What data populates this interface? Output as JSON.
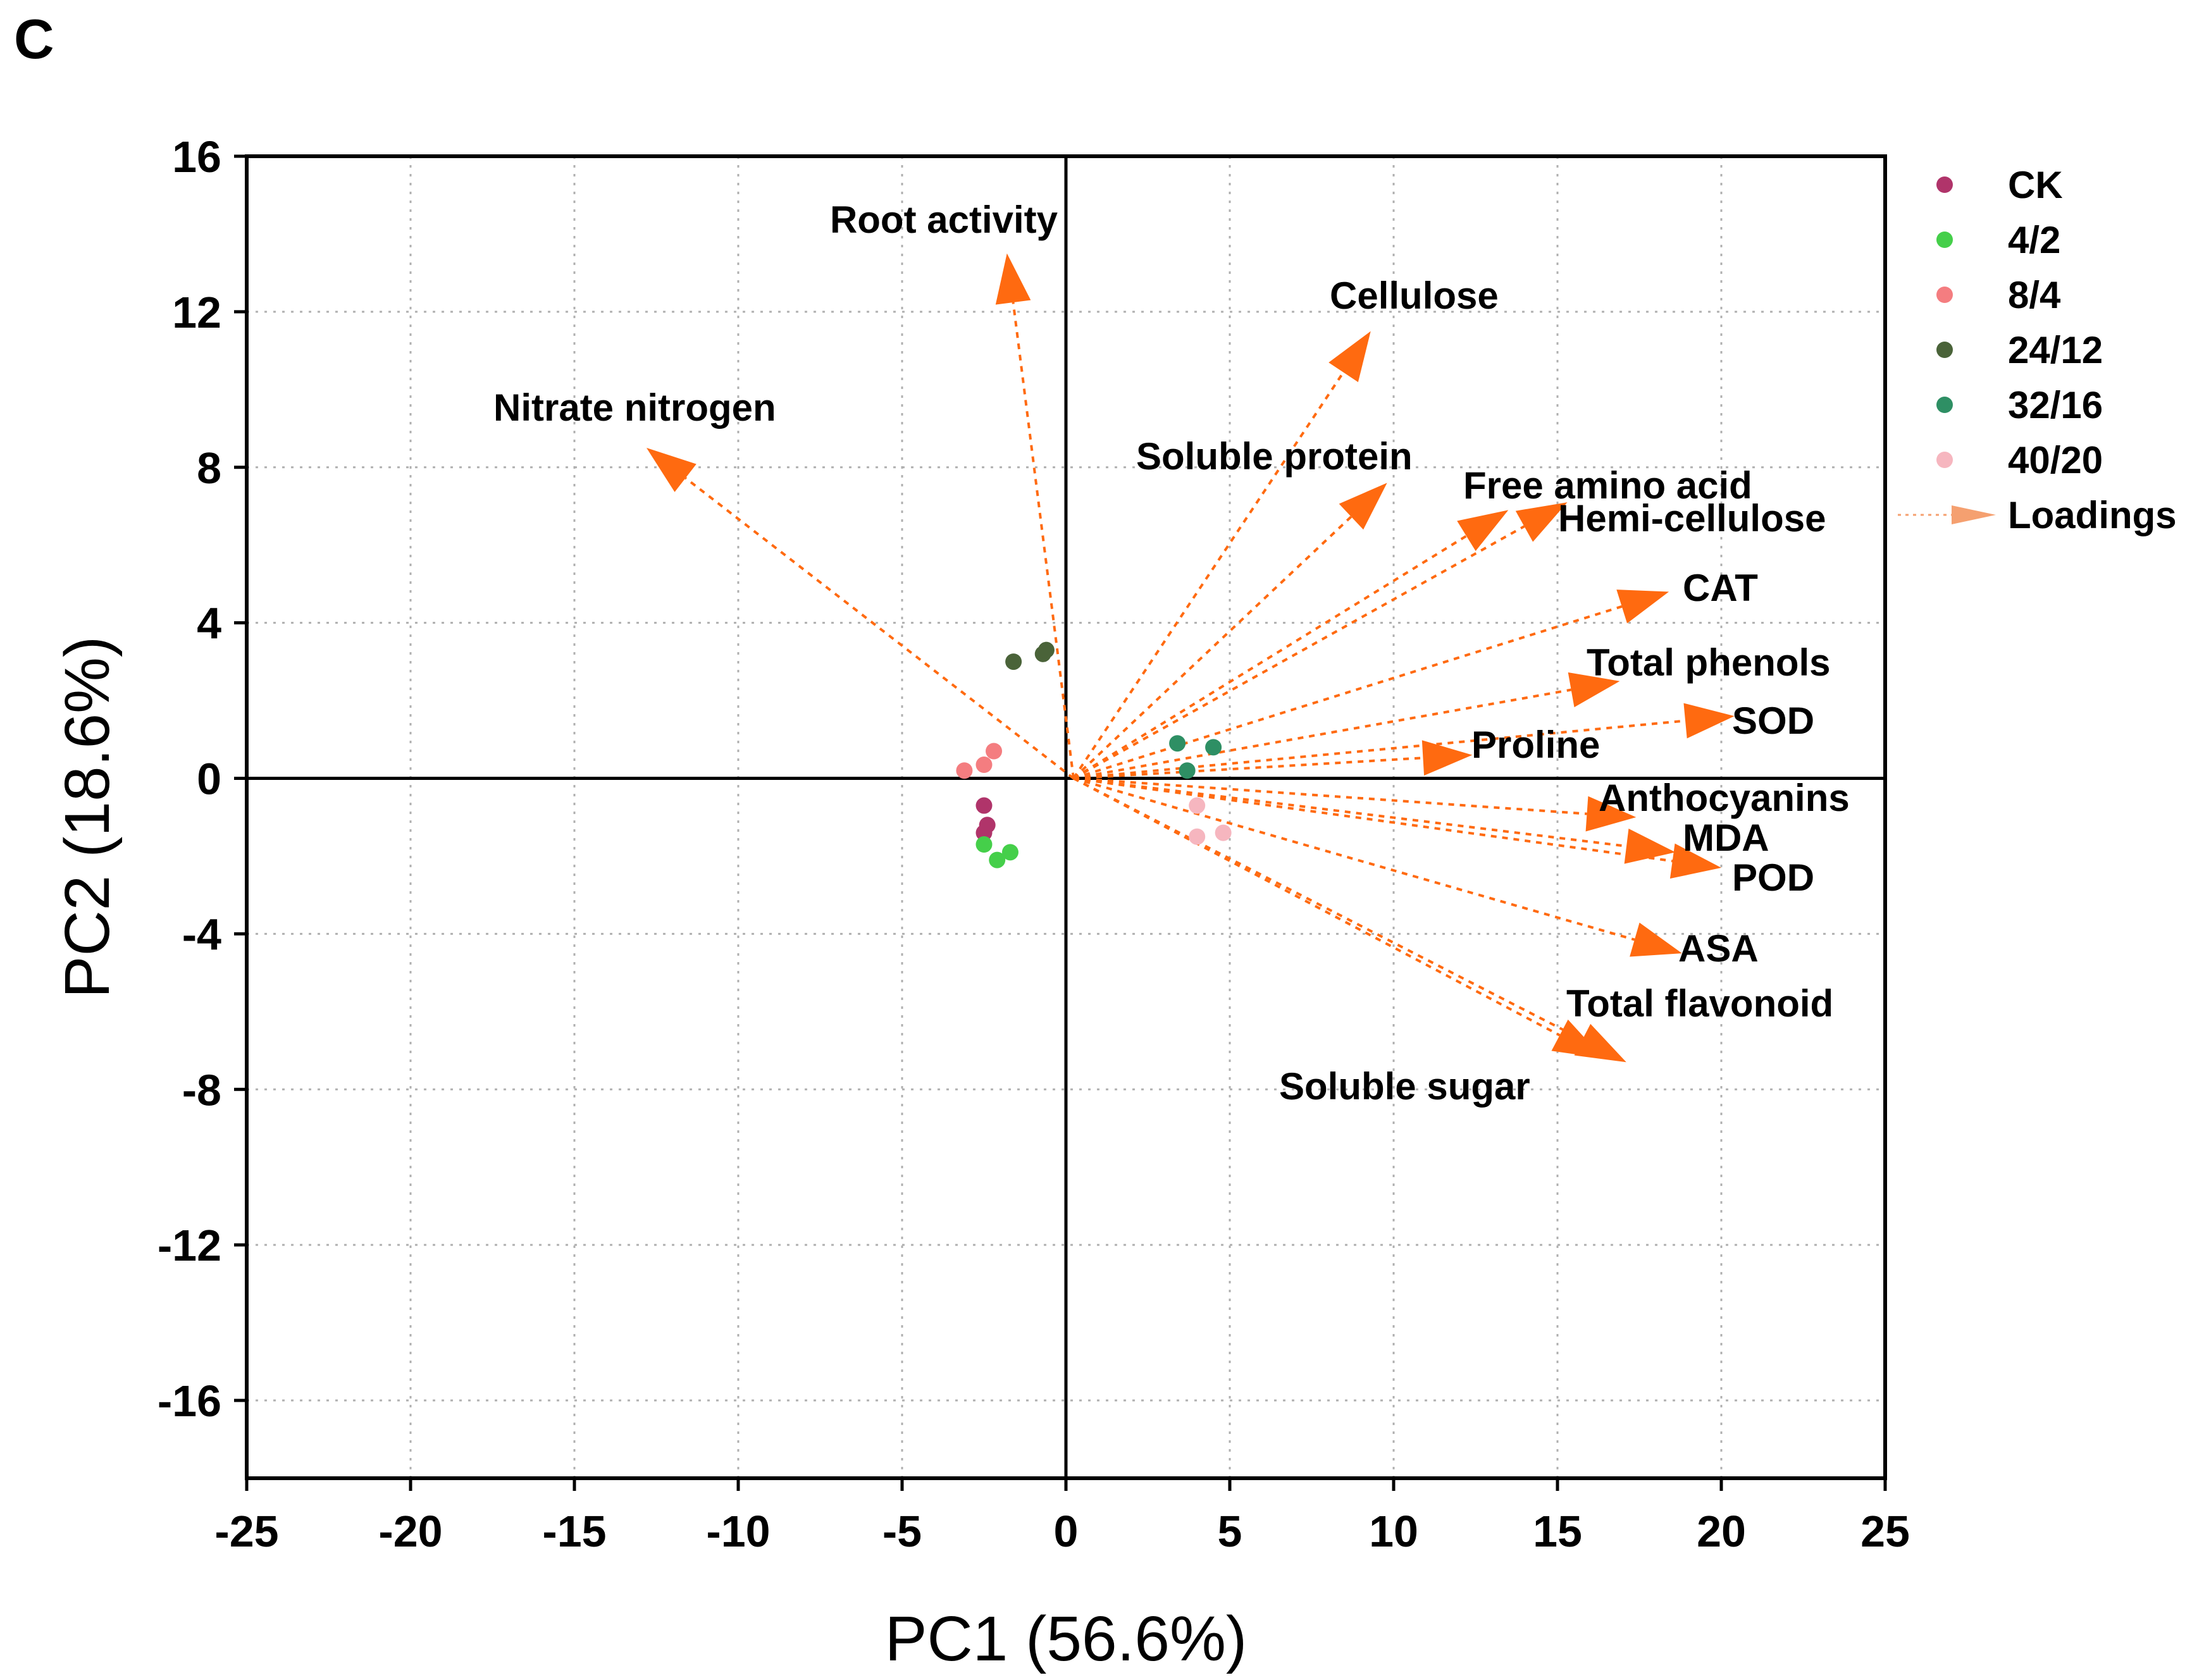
{
  "panel_label": "C",
  "chart_data": {
    "type": "scatter",
    "subtype": "pca-biplot",
    "xlabel": "PC1 (56.6%)",
    "ylabel": "PC2 (18.6%)",
    "xlim": [
      -25,
      25
    ],
    "ylim": [
      -18,
      16
    ],
    "xticks": [
      -25,
      -20,
      -15,
      -10,
      -5,
      0,
      5,
      10,
      15,
      20,
      25
    ],
    "yticks": [
      -16,
      -12,
      -8,
      -4,
      0,
      4,
      8,
      12,
      16
    ],
    "xtick_labels": [
      "-25",
      "-20",
      "-15",
      "-10",
      "-5",
      "0",
      "5",
      "10",
      "15",
      "20",
      "25"
    ],
    "ytick_labels": [
      "-16",
      "-12",
      "-8",
      "-4",
      "0",
      "4",
      "8",
      "12",
      "16"
    ],
    "grid": true,
    "legend_position": "outside-right",
    "series": [
      {
        "name": "CK",
        "color": "#b0346a",
        "points": [
          [
            -2.5,
            -0.7
          ],
          [
            -2.4,
            -1.2
          ],
          [
            -2.5,
            -1.4
          ]
        ]
      },
      {
        "name": "4/2",
        "color": "#45cf4a",
        "points": [
          [
            -2.5,
            -1.7
          ],
          [
            -2.1,
            -2.1
          ],
          [
            -1.7,
            -1.9
          ]
        ]
      },
      {
        "name": "8/4",
        "color": "#f47d80",
        "points": [
          [
            -3.1,
            0.2
          ],
          [
            -2.5,
            0.35
          ],
          [
            -2.2,
            0.7
          ]
        ]
      },
      {
        "name": "24/12",
        "color": "#4a6339",
        "points": [
          [
            -1.6,
            3.0
          ],
          [
            -0.7,
            3.2
          ],
          [
            -0.6,
            3.3
          ]
        ]
      },
      {
        "name": "32/16",
        "color": "#2e8f64",
        "points": [
          [
            3.4,
            0.9
          ],
          [
            4.5,
            0.8
          ],
          [
            3.7,
            0.2
          ]
        ]
      },
      {
        "name": "40/20",
        "color": "#f6b6bf",
        "points": [
          [
            4.0,
            -0.7
          ],
          [
            4.0,
            -1.5
          ],
          [
            4.8,
            -1.4
          ]
        ]
      }
    ],
    "loadings": {
      "name": "Loadings",
      "color": "#ff6a10",
      "vectors": [
        {
          "label": "Root activity",
          "x": -1.8,
          "y": 13.5
        },
        {
          "label": "Nitrate nitrogen",
          "x": -12.8,
          "y": 8.5
        },
        {
          "label": "Cellulose",
          "x": 9.3,
          "y": 11.5
        },
        {
          "label": "Soluble protein",
          "x": 9.8,
          "y": 7.6
        },
        {
          "label": "Free amino acid",
          "x": 13.5,
          "y": 6.9
        },
        {
          "label": "Hemi-cellulose",
          "x": 15.3,
          "y": 7.1
        },
        {
          "label": "CAT",
          "x": 18.4,
          "y": 4.8
        },
        {
          "label": "Total phenols",
          "x": 16.9,
          "y": 2.5
        },
        {
          "label": "SOD",
          "x": 20.4,
          "y": 1.6
        },
        {
          "label": "Proline",
          "x": 12.4,
          "y": 0.6
        },
        {
          "label": "Anthocyanins",
          "x": 17.4,
          "y": -1.0
        },
        {
          "label": "MDA",
          "x": 18.6,
          "y": -1.9
        },
        {
          "label": "POD",
          "x": 20.0,
          "y": -2.3
        },
        {
          "label": "ASA",
          "x": 18.8,
          "y": -4.5
        },
        {
          "label": "Total flavonoid",
          "x": 17.1,
          "y": -7.3
        },
        {
          "label": "Soluble sugar",
          "x": 16.4,
          "y": -7.2
        }
      ]
    }
  }
}
